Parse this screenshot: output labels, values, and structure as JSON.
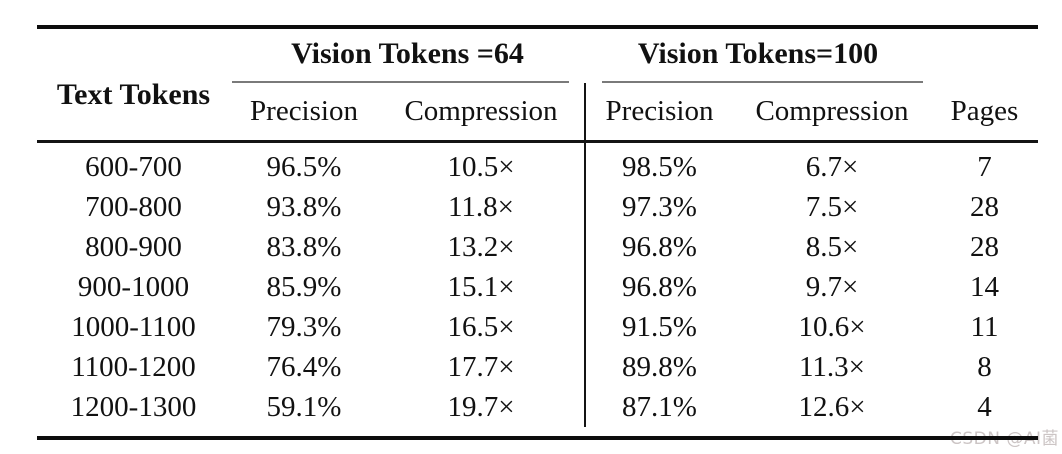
{
  "table": {
    "row_header_label": "Text Tokens",
    "groups": [
      {
        "label": "Vision Tokens =64",
        "columns": [
          "Precision",
          "Compression"
        ]
      },
      {
        "label": "Vision Tokens=100",
        "columns": [
          "Precision",
          "Compression"
        ]
      }
    ],
    "subheaders": {
      "vt64_precision": "Precision",
      "vt64_compression": "Compression",
      "vt100_precision": "Precision",
      "vt100_compression": "Compression",
      "pages": "Pages"
    },
    "rows": [
      {
        "text_tokens": "600-700",
        "vt64_precision": "96.5%",
        "vt64_compression": "10.5×",
        "vt100_precision": "98.5%",
        "vt100_compression": "6.7×",
        "pages": "7"
      },
      {
        "text_tokens": "700-800",
        "vt64_precision": "93.8%",
        "vt64_compression": "11.8×",
        "vt100_precision": "97.3%",
        "vt100_compression": "7.5×",
        "pages": "28"
      },
      {
        "text_tokens": "800-900",
        "vt64_precision": "83.8%",
        "vt64_compression": "13.2×",
        "vt100_precision": "96.8%",
        "vt100_compression": "8.5×",
        "pages": "28"
      },
      {
        "text_tokens": "900-1000",
        "vt64_precision": "85.9%",
        "vt64_compression": "15.1×",
        "vt100_precision": "96.8%",
        "vt100_compression": "9.7×",
        "pages": "14"
      },
      {
        "text_tokens": "1000-1100",
        "vt64_precision": "79.3%",
        "vt64_compression": "16.5×",
        "vt100_precision": "91.5%",
        "vt100_compression": "10.6×",
        "pages": "11"
      },
      {
        "text_tokens": "1100-1200",
        "vt64_precision": "76.4%",
        "vt64_compression": "17.7×",
        "vt100_precision": "89.8%",
        "vt100_compression": "11.3×",
        "pages": "8"
      },
      {
        "text_tokens": "1200-1300",
        "vt64_precision": "59.1%",
        "vt64_compression": "19.7×",
        "vt100_precision": "87.1%",
        "vt100_compression": "12.6×",
        "pages": "4"
      }
    ]
  },
  "watermark": "CSDN @AI菌",
  "colors": {
    "rule_heavy": "#0d0d0d",
    "rule_mid": "#141414",
    "rule_cmid": "#7a7a7a",
    "text": "#111111",
    "watermark": "#ccc5c5",
    "background": "#ffffff"
  }
}
